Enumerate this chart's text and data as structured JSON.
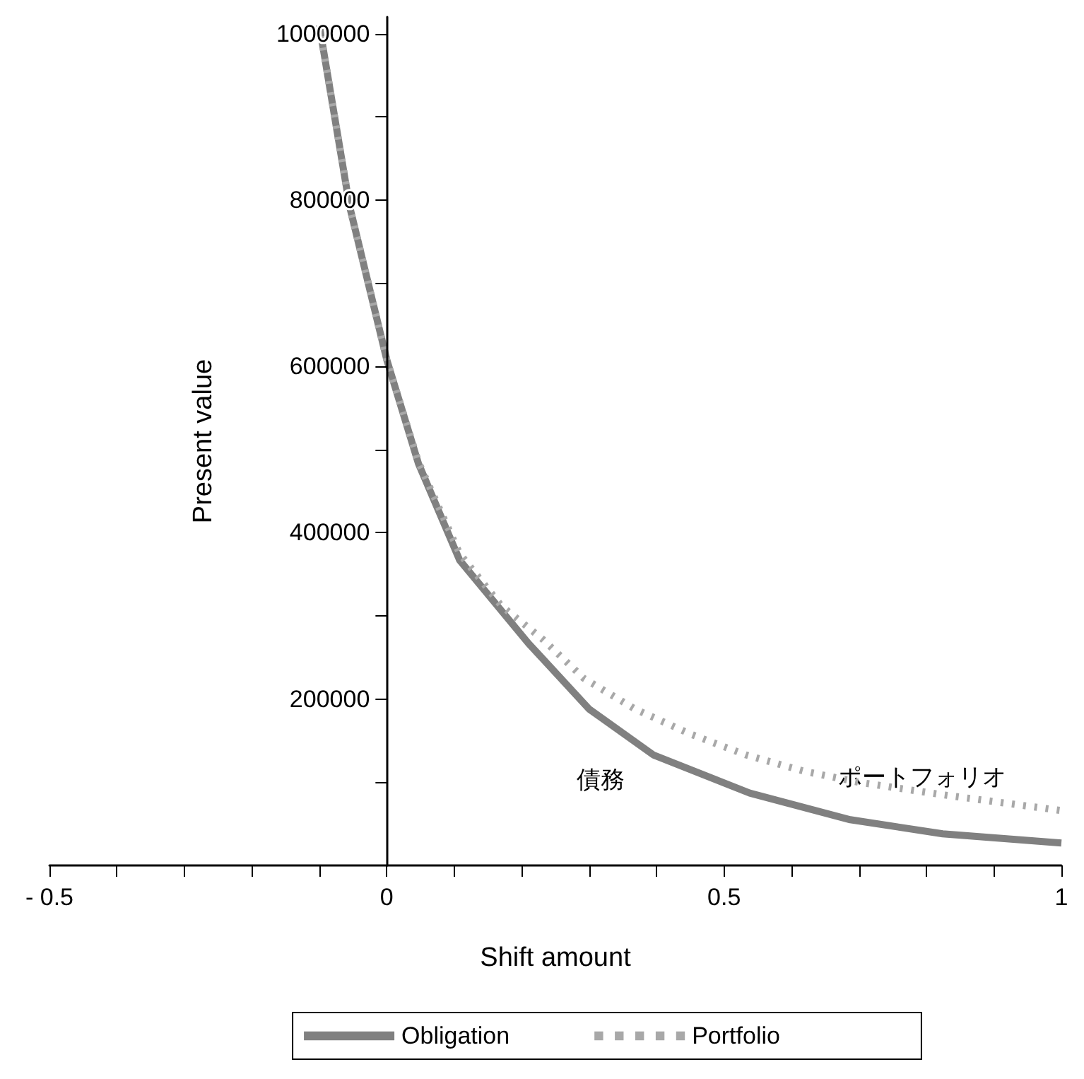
{
  "chart_data": {
    "type": "line",
    "xlabel": "Shift amount",
    "ylabel": "Present value",
    "xlim": [
      -0.5,
      1
    ],
    "ylim": [
      0,
      1020000
    ],
    "xticks": [
      {
        "value": -0.5,
        "label": "- 0.5"
      },
      {
        "value": -0.4,
        "label": null
      },
      {
        "value": -0.3,
        "label": null
      },
      {
        "value": -0.2,
        "label": null
      },
      {
        "value": -0.1,
        "label": null
      },
      0,
      {
        "value": 0.1,
        "label": null
      },
      {
        "value": 0.2,
        "label": null
      },
      {
        "value": 0.3,
        "label": null
      },
      {
        "value": 0.4,
        "label": null
      },
      0.5,
      {
        "value": 0.6,
        "label": null
      },
      {
        "value": 0.7,
        "label": null
      },
      {
        "value": 0.8,
        "label": null
      },
      {
        "value": 0.9,
        "label": null
      },
      1
    ],
    "yticks": [
      {
        "value": 100000,
        "label": null
      },
      200000,
      {
        "value": 300000,
        "label": null
      },
      400000,
      {
        "value": 500000,
        "label": null
      },
      600000,
      {
        "value": 700000,
        "label": null
      },
      800000,
      {
        "value": 900000,
        "label": null
      },
      1000000
    ],
    "grid": false,
    "legend": "bottom",
    "marker": "none",
    "series": [
      {
        "name": "Obligation",
        "color": "#808080",
        "line_style": "solid",
        "x": [
          -0.1,
          -0.055,
          0,
          0.047,
          0.108,
          0.21,
          0.3,
          0.395,
          0.538,
          0.687,
          0.824,
          1
        ],
        "values": [
          1010000,
          792000,
          608000,
          483000,
          367000,
          267000,
          188000,
          133000,
          87000,
          55000,
          38000,
          27000
        ]
      },
      {
        "name": "Portfolio",
        "color": "#a8a8a8",
        "line_style": "dotted",
        "x": [
          -0.1,
          -0.055,
          0,
          0.047,
          0.108,
          0.17,
          0.231,
          0.292,
          0.368,
          0.45,
          0.532,
          0.62,
          0.7,
          0.824,
          1
        ],
        "values": [
          1010000,
          792000,
          608000,
          485000,
          375000,
          312000,
          272000,
          225000,
          188000,
          158000,
          133000,
          113000,
          100000,
          85000,
          66000
        ]
      }
    ],
    "annotations": [
      "債務",
      "ポートフォリオ"
    ]
  }
}
